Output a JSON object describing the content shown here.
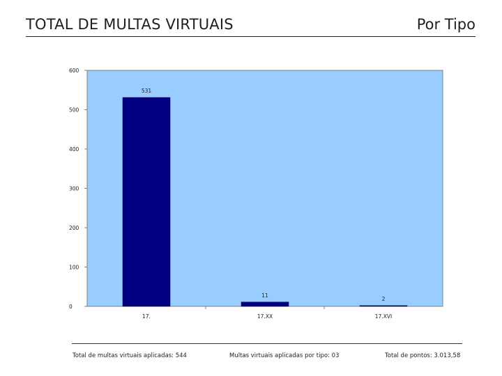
{
  "header": {
    "title": "TOTAL DE MULTAS VIRTUAIS",
    "subtitle": "Por Tipo"
  },
  "chart_data": {
    "type": "bar",
    "title": "",
    "xlabel": "",
    "ylabel": "",
    "categories": [
      "17.",
      "17.XX",
      "17.XVI"
    ],
    "values": [
      531,
      11,
      2
    ],
    "data_labels": [
      "531",
      "11",
      "2"
    ],
    "ylim": [
      0,
      600
    ],
    "yticks": [
      0,
      100,
      200,
      300,
      400,
      500,
      600
    ],
    "ytick_labels": [
      "0",
      "100",
      "200",
      "300",
      "400",
      "500",
      "600"
    ],
    "grid": false,
    "legend": "none",
    "colors": {
      "plot_background": "#99ccff",
      "bar": "#000080",
      "axis": "#808080"
    }
  },
  "footer": {
    "total": "Total de multas virtuais aplicadas: 544",
    "tipos": "Multas virtuais aplicadas por tipo: 03",
    "pontos": "Total de pontos: 3.013,58"
  }
}
